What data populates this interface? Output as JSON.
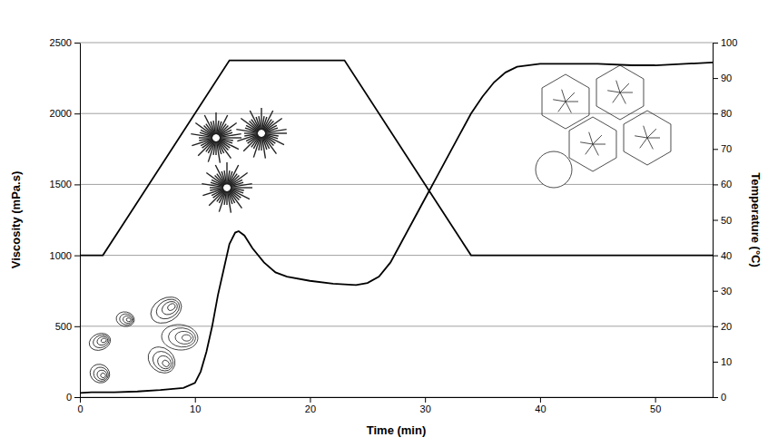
{
  "chart_data": {
    "type": "line",
    "x_label": "Time (min)",
    "y_label": "Viscosity (mPa.s)",
    "y2_label": "Temperature (°C)",
    "xlim": [
      0,
      55
    ],
    "xticks": [
      0,
      10,
      20,
      30,
      40,
      50
    ],
    "ylim": [
      0,
      2500
    ],
    "yticks": [
      0,
      500,
      1000,
      1500,
      2000,
      2500
    ],
    "y2lim": [
      0,
      100
    ],
    "y2ticks": [
      0,
      10,
      20,
      30,
      40,
      50,
      60,
      70,
      80,
      90,
      100
    ],
    "grid": true,
    "series": [
      {
        "color": "#000000",
        "x": [
          0,
          1,
          3,
          5,
          7,
          9,
          10,
          10.5,
          11,
          11.5,
          12,
          12.5,
          13,
          13.5,
          13.8,
          14.3,
          15,
          16,
          17,
          18,
          20,
          22,
          24,
          25,
          26,
          27,
          28,
          29,
          30,
          31,
          32,
          33,
          34,
          35,
          36,
          37,
          38,
          40,
          45,
          48,
          50,
          55
        ],
        "values": [
          30,
          35,
          35,
          40,
          50,
          65,
          100,
          180,
          320,
          500,
          720,
          900,
          1080,
          1160,
          1170,
          1140,
          1050,
          950,
          880,
          850,
          820,
          800,
          790,
          805,
          850,
          950,
          1100,
          1250,
          1400,
          1550,
          1700,
          1850,
          2000,
          2120,
          2220,
          2290,
          2330,
          2350,
          2350,
          2340,
          2340,
          2360
        ]
      },
      {
        "color": "#000000",
        "axis": "y2",
        "x": [
          0,
          2,
          13,
          23,
          34,
          55
        ],
        "values": [
          40,
          40,
          95,
          95,
          40,
          40
        ]
      }
    ]
  }
}
